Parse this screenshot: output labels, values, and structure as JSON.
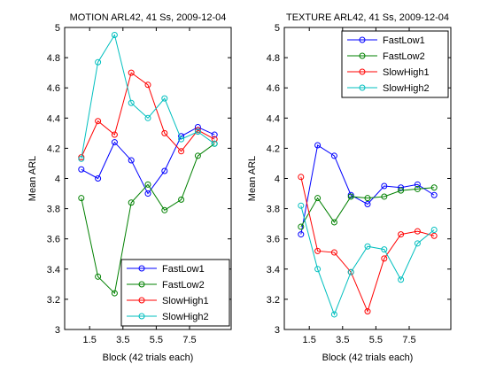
{
  "chart_data": [
    {
      "type": "line",
      "title": "MOTION ARL42, 41 Ss, 2009-12-04",
      "xlabel": "Block (42 trials each)",
      "ylabel": "Mean ARL",
      "xlim": [
        0,
        10
      ],
      "ylim": [
        3,
        5
      ],
      "xticks": [
        1.5,
        3.5,
        5.5,
        7.5
      ],
      "xtick_labels": [
        "1.5",
        "3.5",
        "5.5",
        "7.5"
      ],
      "yticks": [
        3,
        3.2,
        3.4,
        3.6,
        3.8,
        4,
        4.2,
        4.4,
        4.6,
        4.8,
        5
      ],
      "ytick_labels": [
        "3",
        "3.2",
        "3.4",
        "3.6",
        "3.8",
        "4",
        "4.2",
        "4.4",
        "4.6",
        "4.8",
        "5"
      ],
      "x": [
        1,
        2,
        3,
        4,
        5,
        6,
        7,
        8,
        9
      ],
      "legend": "bottom-right",
      "grid": false,
      "series": [
        {
          "name": "FastLow1",
          "color": "#0000ff",
          "values": [
            4.06,
            4.0,
            4.24,
            4.12,
            3.9,
            4.05,
            4.28,
            4.34,
            4.29
          ]
        },
        {
          "name": "FastLow2",
          "color": "#008000",
          "values": [
            3.87,
            3.35,
            3.24,
            3.84,
            3.96,
            3.79,
            3.86,
            4.15,
            4.23
          ]
        },
        {
          "name": "SlowHigh1",
          "color": "#ff0000",
          "values": [
            4.14,
            4.38,
            4.29,
            4.7,
            4.62,
            4.3,
            4.18,
            4.32,
            4.26
          ]
        },
        {
          "name": "SlowHigh2",
          "color": "#00bfbf",
          "values": [
            4.13,
            4.77,
            4.95,
            4.5,
            4.4,
            4.53,
            4.26,
            4.31,
            4.23
          ]
        }
      ]
    },
    {
      "type": "line",
      "title": "TEXTURE ARL42, 41 Ss, 2009-12-04",
      "xlabel": "Block (42 trials each)",
      "ylabel": "Mean ARL",
      "xlim": [
        0,
        10
      ],
      "ylim": [
        3,
        5
      ],
      "xticks": [
        1.5,
        3.5,
        5.5,
        7.5
      ],
      "xtick_labels": [
        "1.5",
        "3.5",
        "5.5",
        "7.5"
      ],
      "yticks": [
        3,
        3.2,
        3.4,
        3.6,
        3.8,
        4,
        4.2,
        4.4,
        4.6,
        4.8,
        5
      ],
      "ytick_labels": [
        "3",
        "3.2",
        "3.4",
        "3.6",
        "3.8",
        "4",
        "4.2",
        "4.4",
        "4.6",
        "4.8",
        "5"
      ],
      "x": [
        1,
        2,
        3,
        4,
        5,
        6,
        7,
        8,
        9
      ],
      "legend": "top-right",
      "grid": false,
      "series": [
        {
          "name": "FastLow1",
          "color": "#0000ff",
          "values": [
            3.63,
            4.22,
            4.15,
            3.89,
            3.83,
            3.95,
            3.94,
            3.96,
            3.89
          ]
        },
        {
          "name": "FastLow2",
          "color": "#008000",
          "values": [
            3.68,
            3.87,
            3.71,
            3.88,
            3.87,
            3.88,
            3.92,
            3.93,
            3.94
          ]
        },
        {
          "name": "SlowHigh1",
          "color": "#ff0000",
          "values": [
            4.01,
            3.52,
            3.51,
            3.38,
            3.12,
            3.47,
            3.63,
            3.65,
            3.62
          ]
        },
        {
          "name": "SlowHigh2",
          "color": "#00bfbf",
          "values": [
            3.82,
            3.4,
            3.1,
            3.38,
            3.55,
            3.53,
            3.33,
            3.57,
            3.66
          ]
        }
      ]
    }
  ]
}
